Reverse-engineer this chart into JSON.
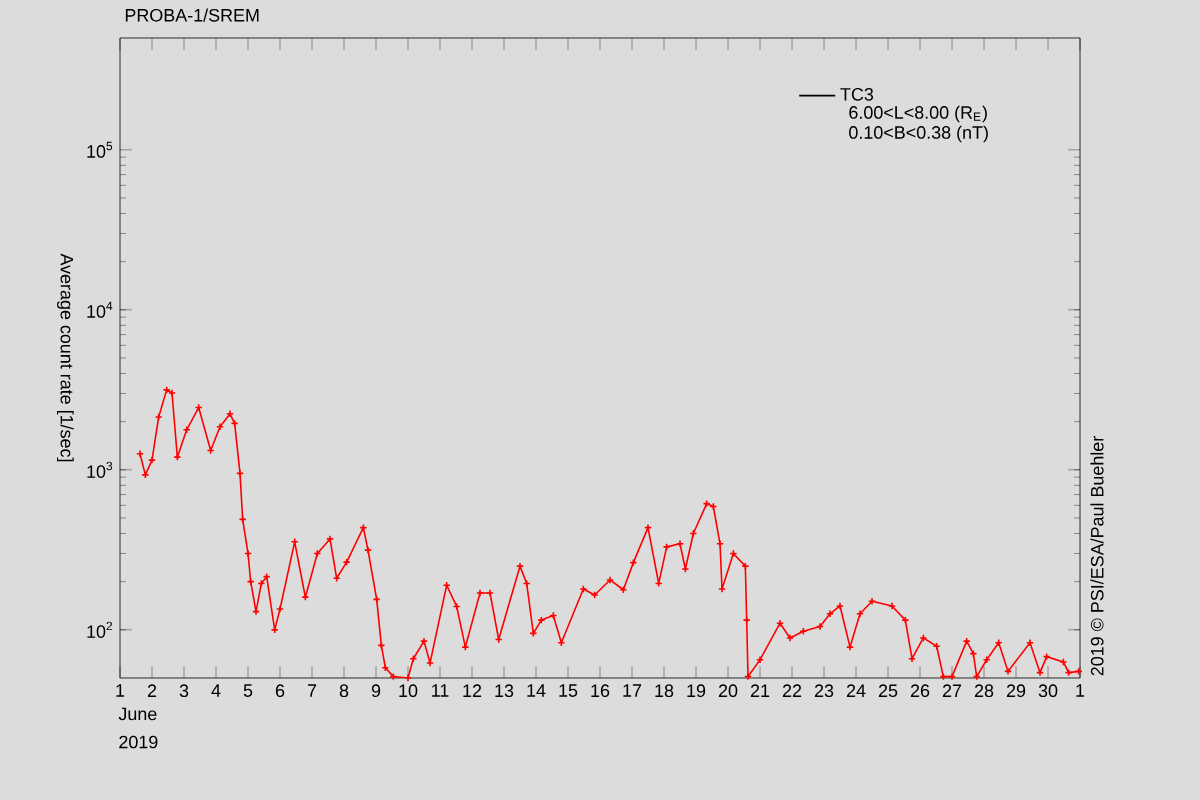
{
  "chart_data": {
    "type": "line",
    "title": "PROBA-1/SREM",
    "ylabel": "Average count rate [1/sec]",
    "x": [
      "2019-06-01T15:00",
      "2019-06-01T19:00",
      "2019-06-02T00:00",
      "2019-06-02T05:00",
      "2019-06-02T11:00",
      "2019-06-02T15:00",
      "2019-06-02T19:00",
      "2019-06-03T02:00",
      "2019-06-03T11:00",
      "2019-06-03T20:00",
      "2019-06-04T03:00",
      "2019-06-04T10:30",
      "2019-06-04T14:00",
      "2019-06-04T18:00",
      "2019-06-04T20:00",
      "2019-06-05T00:00",
      "2019-06-05T02:00",
      "2019-06-05T06:00",
      "2019-06-05T10:00",
      "2019-06-05T14:00",
      "2019-06-05T20:00",
      "2019-06-06T00:00",
      "2019-06-06T11:00",
      "2019-06-06T19:00",
      "2019-06-07T04:00",
      "2019-06-07T13:30",
      "2019-06-07T18:30",
      "2019-06-08T02:00",
      "2019-06-08T14:30",
      "2019-06-08T18:00",
      "2019-06-09T00:30",
      "2019-06-09T04:00",
      "2019-06-09T07:00",
      "2019-06-09T13:00",
      "2019-06-10T00:00",
      "2019-06-10T04:00",
      "2019-06-10T12:00",
      "2019-06-10T16:30",
      "2019-06-11T05:00",
      "2019-06-11T12:30",
      "2019-06-11T19:00",
      "2019-06-12T06:00",
      "2019-06-12T13:30",
      "2019-06-12T20:00",
      "2019-06-13T12:00",
      "2019-06-13T17:00",
      "2019-06-13T22:00",
      "2019-06-14T04:00",
      "2019-06-14T13:00",
      "2019-06-14T19:00",
      "2019-06-15T11:30",
      "2019-06-15T20:00",
      "2019-06-16T07:30",
      "2019-06-16T17:30",
      "2019-06-17T01:00",
      "2019-06-17T12:00",
      "2019-06-17T20:00",
      "2019-06-18T02:00",
      "2019-06-18T12:00",
      "2019-06-18T16:00",
      "2019-06-18T22:00",
      "2019-06-19T08:00",
      "2019-06-19T13:00",
      "2019-06-19T18:00",
      "2019-06-19T19:30",
      "2019-06-20T04:00",
      "2019-06-20T13:00",
      "2019-06-20T14:00",
      "2019-06-20T15:00",
      "2019-06-21T00:00",
      "2019-06-21T15:00",
      "2019-06-21T22:30",
      "2019-06-22T08:30",
      "2019-06-22T21:00",
      "2019-06-23T04:30",
      "2019-06-23T12:00",
      "2019-06-23T19:30",
      "2019-06-24T03:00",
      "2019-06-24T12:00",
      "2019-06-25T03:00",
      "2019-06-25T13:00",
      "2019-06-25T18:00",
      "2019-06-26T02:30",
      "2019-06-26T12:30",
      "2019-06-26T17:30",
      "2019-06-27T00:00",
      "2019-06-27T11:00",
      "2019-06-27T16:00",
      "2019-06-27T18:30",
      "2019-06-28T02:00",
      "2019-06-28T11:00",
      "2019-06-28T18:00",
      "2019-06-29T10:30",
      "2019-06-29T18:00",
      "2019-06-29T23:00",
      "2019-06-30T11:30",
      "2019-06-30T15:30",
      "2019-06-30T23:00"
    ],
    "series": [
      {
        "name": "TC3",
        "color": "#ff0000",
        "values": [
          1260,
          930,
          1150,
          2140,
          3160,
          3020,
          1200,
          1780,
          2450,
          1320,
          1860,
          2240,
          1950,
          950,
          490,
          300,
          200,
          130,
          195,
          215,
          100,
          135,
          355,
          160,
          300,
          370,
          210,
          265,
          435,
          315,
          155,
          80,
          58,
          51,
          50,
          66,
          85,
          62,
          190,
          140,
          78,
          170,
          170,
          87,
          250,
          195,
          95,
          115,
          123,
          83,
          180,
          165,
          205,
          178,
          263,
          435,
          195,
          330,
          345,
          240,
          400,
          615,
          590,
          345,
          180,
          300,
          250,
          115,
          51,
          65,
          110,
          89,
          98,
          105,
          126,
          141,
          78,
          126,
          151,
          141,
          115,
          66,
          89,
          79,
          51,
          51,
          85,
          71,
          51,
          65,
          83,
          55,
          83,
          54,
          68,
          63,
          54,
          55
        ]
      }
    ],
    "ylim": [
      50,
      500000
    ],
    "log": true,
    "yticks": [
      {
        "value": 100,
        "label": "10$^{2}$"
      },
      {
        "value": 1000,
        "label": "10$^{3}$"
      },
      {
        "value": 10000,
        "label": "10$^{4}$"
      },
      {
        "value": 100000,
        "label": "10$^{5}$"
      }
    ],
    "xlim": [
      "2019-06-01",
      "2019-07-01"
    ],
    "xticks": [
      {
        "value": "2019-06-01",
        "label": "1"
      },
      {
        "value": "2019-06-02",
        "label": "2"
      },
      {
        "value": "2019-06-03",
        "label": "3"
      },
      {
        "value": "2019-06-04",
        "label": "4"
      },
      {
        "value": "2019-06-05",
        "label": "5"
      },
      {
        "value": "2019-06-06",
        "label": "6"
      },
      {
        "value": "2019-06-07",
        "label": "7"
      },
      {
        "value": "2019-06-08",
        "label": "8"
      },
      {
        "value": "2019-06-09",
        "label": "9"
      },
      {
        "value": "2019-06-10",
        "label": "10"
      },
      {
        "value": "2019-06-11",
        "label": "11"
      },
      {
        "value": "2019-06-12",
        "label": "12"
      },
      {
        "value": "2019-06-13",
        "label": "13"
      },
      {
        "value": "2019-06-14",
        "label": "14"
      },
      {
        "value": "2019-06-15",
        "label": "15"
      },
      {
        "value": "2019-06-16",
        "label": "16"
      },
      {
        "value": "2019-06-17",
        "label": "17"
      },
      {
        "value": "2019-06-18",
        "label": "18"
      },
      {
        "value": "2019-06-19",
        "label": "19"
      },
      {
        "value": "2019-06-20",
        "label": "20"
      },
      {
        "value": "2019-06-21",
        "label": "21"
      },
      {
        "value": "2019-06-22",
        "label": "22"
      },
      {
        "value": "2019-06-23",
        "label": "23"
      },
      {
        "value": "2019-06-24",
        "label": "24"
      },
      {
        "value": "2019-06-25",
        "label": "25"
      },
      {
        "value": "2019-06-26",
        "label": "26"
      },
      {
        "value": "2019-06-27",
        "label": "27"
      },
      {
        "value": "2019-06-28",
        "label": "28"
      },
      {
        "value": "2019-06-29",
        "label": "29"
      },
      {
        "value": "2019-06-30",
        "label": "30"
      },
      {
        "value": "2019-07-01",
        "label": "1"
      }
    ],
    "marker": "cross",
    "line_style": "solid",
    "legend": "top right",
    "grid": false,
    "annotations": [
      "June",
      "2019",
      "6.00<L<8.00 (R$_{E}$)",
      "0.10<B<0.38 (nT)",
      "2019 © PSI/ESA/Paul Buehler"
    ]
  }
}
